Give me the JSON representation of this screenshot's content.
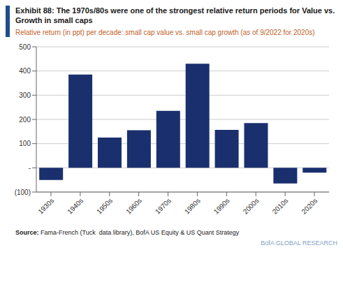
{
  "chart_data": {
    "type": "bar",
    "title": "Exhibit 88: The 1970s/80s were one of the strongest relative return periods for Value vs. Growth in small caps",
    "subtitle": "Relative return (in ppt) per decade: small cap value vs. small cap growth (as of 9/2022 for 2020s)",
    "categories": [
      "1930s",
      "1940s",
      "1950s",
      "1960s",
      "1970s",
      "1980s",
      "1990s",
      "2000s",
      "2010s",
      "2020s"
    ],
    "values": [
      -50,
      385,
      125,
      155,
      235,
      430,
      157,
      185,
      -65,
      -20
    ],
    "color": "#1a2f6e",
    "ylim": [
      -100,
      500
    ],
    "yticks": [
      {
        "value": -100,
        "label": "(100)"
      },
      {
        "value": 0,
        "label": "-"
      },
      100,
      200,
      300,
      400,
      500
    ],
    "grid": true,
    "annotations": [
      "Source: Fama-French (Tuck  data library), BofA US Equity & US Quant Strategy",
      "BofA GLOBAL RESEARCH"
    ]
  }
}
